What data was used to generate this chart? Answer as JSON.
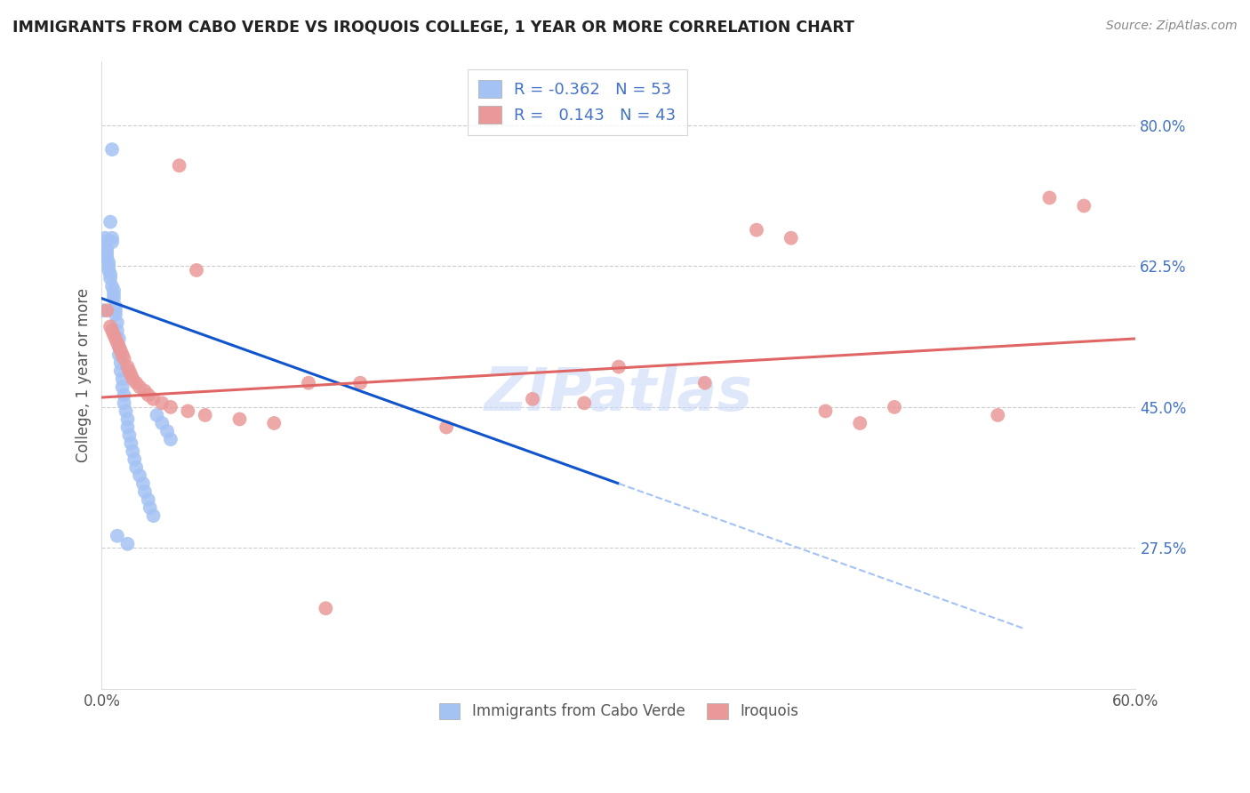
{
  "title": "IMMIGRANTS FROM CABO VERDE VS IROQUOIS COLLEGE, 1 YEAR OR MORE CORRELATION CHART",
  "source": "Source: ZipAtlas.com",
  "ylabel": "College, 1 year or more",
  "xlim": [
    0.0,
    0.6
  ],
  "ylim": [
    0.1,
    0.88
  ],
  "xtick_positions": [
    0.0,
    0.1,
    0.2,
    0.3,
    0.4,
    0.5,
    0.6
  ],
  "xticklabels": [
    "0.0%",
    "",
    "",
    "",
    "",
    "",
    "60.0%"
  ],
  "yticks_right": [
    0.275,
    0.45,
    0.625,
    0.8
  ],
  "ytick_labels_right": [
    "27.5%",
    "45.0%",
    "62.5%",
    "80.0%"
  ],
  "R_blue": -0.362,
  "N_blue": 53,
  "R_pink": 0.143,
  "N_pink": 43,
  "blue_color": "#a4c2f4",
  "pink_color": "#ea9999",
  "blue_line_color": "#1155cc",
  "pink_line_color": "#e06666",
  "dash_color": "#a4c2f4",
  "grid_color": "#cccccc",
  "watermark": "ZIPatlas",
  "blue_x": [
    0.001,
    0.002,
    0.002,
    0.003,
    0.003,
    0.003,
    0.004,
    0.004,
    0.004,
    0.005,
    0.005,
    0.005,
    0.006,
    0.006,
    0.006,
    0.007,
    0.007,
    0.007,
    0.008,
    0.008,
    0.008,
    0.009,
    0.009,
    0.01,
    0.01,
    0.01,
    0.011,
    0.011,
    0.012,
    0.012,
    0.013,
    0.013,
    0.014,
    0.015,
    0.015,
    0.016,
    0.017,
    0.018,
    0.019,
    0.02,
    0.022,
    0.024,
    0.025,
    0.027,
    0.028,
    0.03,
    0.032,
    0.035,
    0.038,
    0.04,
    0.006,
    0.009,
    0.015
  ],
  "blue_y": [
    0.57,
    0.66,
    0.655,
    0.645,
    0.64,
    0.635,
    0.63,
    0.625,
    0.62,
    0.68,
    0.615,
    0.61,
    0.66,
    0.655,
    0.6,
    0.595,
    0.59,
    0.585,
    0.575,
    0.57,
    0.565,
    0.555,
    0.545,
    0.535,
    0.525,
    0.515,
    0.505,
    0.495,
    0.485,
    0.475,
    0.465,
    0.455,
    0.445,
    0.435,
    0.425,
    0.415,
    0.405,
    0.395,
    0.385,
    0.375,
    0.365,
    0.355,
    0.345,
    0.335,
    0.325,
    0.315,
    0.44,
    0.43,
    0.42,
    0.41,
    0.77,
    0.29,
    0.28
  ],
  "pink_x": [
    0.003,
    0.005,
    0.006,
    0.007,
    0.008,
    0.009,
    0.01,
    0.011,
    0.012,
    0.013,
    0.015,
    0.016,
    0.017,
    0.018,
    0.02,
    0.022,
    0.025,
    0.027,
    0.03,
    0.035,
    0.04,
    0.05,
    0.06,
    0.08,
    0.1,
    0.12,
    0.15,
    0.2,
    0.25,
    0.28,
    0.3,
    0.35,
    0.38,
    0.4,
    0.42,
    0.44,
    0.46,
    0.52,
    0.55,
    0.57,
    0.045,
    0.055,
    0.13
  ],
  "pink_y": [
    0.57,
    0.55,
    0.545,
    0.54,
    0.535,
    0.53,
    0.525,
    0.52,
    0.515,
    0.51,
    0.5,
    0.495,
    0.49,
    0.485,
    0.48,
    0.475,
    0.47,
    0.465,
    0.46,
    0.455,
    0.45,
    0.445,
    0.44,
    0.435,
    0.43,
    0.48,
    0.48,
    0.425,
    0.46,
    0.455,
    0.5,
    0.48,
    0.67,
    0.66,
    0.445,
    0.43,
    0.45,
    0.44,
    0.71,
    0.7,
    0.75,
    0.62,
    0.2
  ],
  "blue_line_x0": 0.0,
  "blue_line_x1": 0.3,
  "blue_line_y0": 0.585,
  "blue_line_y1": 0.355,
  "dash_line_x0": 0.3,
  "dash_line_x1": 0.535,
  "dash_line_y0": 0.355,
  "dash_line_y1": 0.175,
  "pink_line_x0": 0.0,
  "pink_line_x1": 0.6,
  "pink_line_y0": 0.462,
  "pink_line_y1": 0.535
}
